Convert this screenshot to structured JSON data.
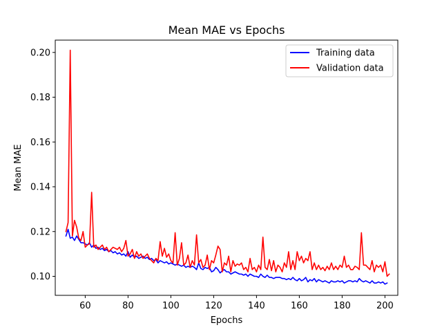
{
  "chart_data": {
    "type": "line",
    "title": "Mean MAE vs Epochs",
    "xlabel": "Epochs",
    "ylabel": "Mean MAE",
    "xlim": [
      46,
      206
    ],
    "ylim": [
      0.0915,
      0.2055
    ],
    "xticks": [
      60,
      80,
      100,
      120,
      140,
      160,
      180,
      200
    ],
    "yticks": [
      0.1,
      0.12,
      0.14,
      0.16,
      0.18,
      0.2
    ],
    "ytick_format": 2,
    "legend_position": "top-right",
    "series": [
      {
        "name": "Training data",
        "color": "#0000ff",
        "x_start": 51,
        "values": [
          0.118,
          0.121,
          0.117,
          0.1175,
          0.116,
          0.118,
          0.1165,
          0.115,
          0.115,
          0.1145,
          0.114,
          0.115,
          0.113,
          0.114,
          0.1125,
          0.113,
          0.112,
          0.1125,
          0.1115,
          0.112,
          0.111,
          0.1115,
          0.1105,
          0.111,
          0.11,
          0.1105,
          0.1095,
          0.11,
          0.109,
          0.111,
          0.1085,
          0.1095,
          0.1085,
          0.109,
          0.108,
          0.1085,
          0.109,
          0.108,
          0.1085,
          0.1075,
          0.108,
          0.107,
          0.1075,
          0.106,
          0.107,
          0.1065,
          0.106,
          0.1065,
          0.1055,
          0.106,
          0.1055,
          0.105,
          0.1055,
          0.105,
          0.1045,
          0.105,
          0.104,
          0.1045,
          0.104,
          0.1045,
          0.104,
          0.103,
          0.106,
          0.1035,
          0.103,
          0.104,
          0.1035,
          0.104,
          0.102,
          0.1025,
          0.104,
          0.103,
          0.1015,
          0.1025,
          0.103,
          0.102,
          0.102,
          0.101,
          0.1015,
          0.102,
          0.1015,
          0.101,
          0.101,
          0.1005,
          0.101,
          0.1,
          0.101,
          0.1005,
          0.1,
          0.1,
          0.0995,
          0.101,
          0.1,
          0.0995,
          0.1005,
          0.0995,
          0.0995,
          0.099,
          0.0995,
          0.0995,
          0.0995,
          0.099,
          0.099,
          0.0985,
          0.099,
          0.0985,
          0.0995,
          0.0985,
          0.098,
          0.099,
          0.098,
          0.0985,
          0.0995,
          0.0975,
          0.0985,
          0.098,
          0.099,
          0.0975,
          0.0985,
          0.098,
          0.0975,
          0.098,
          0.0975,
          0.097,
          0.098,
          0.0975,
          0.0975,
          0.098,
          0.0975,
          0.098,
          0.097,
          0.0975,
          0.098,
          0.098,
          0.0975,
          0.098,
          0.0975,
          0.099,
          0.098,
          0.0975,
          0.098,
          0.0975,
          0.097,
          0.098,
          0.097,
          0.097,
          0.0975,
          0.097,
          0.0975,
          0.0965,
          0.097
        ]
      },
      {
        "name": "Validation data",
        "color": "#ff0000",
        "x_start": 51,
        "values": [
          0.12,
          0.124,
          0.201,
          0.118,
          0.125,
          0.122,
          0.117,
          0.116,
          0.12,
          0.113,
          0.114,
          0.1145,
          0.1375,
          0.113,
          0.114,
          0.112,
          0.113,
          0.114,
          0.112,
          0.113,
          0.111,
          0.112,
          0.113,
          0.1125,
          0.112,
          0.113,
          0.111,
          0.1125,
          0.116,
          0.109,
          0.11,
          0.112,
          0.108,
          0.111,
          0.109,
          0.11,
          0.108,
          0.109,
          0.11,
          0.108,
          0.107,
          0.106,
          0.108,
          0.107,
          0.1155,
          0.109,
          0.1125,
          0.1085,
          0.11,
          0.107,
          0.106,
          0.1195,
          0.105,
          0.108,
          0.115,
          0.105,
          0.106,
          0.1095,
          0.104,
          0.107,
          0.105,
          0.1185,
          0.106,
          0.1075,
          0.104,
          0.105,
          0.1095,
          0.103,
          0.107,
          0.106,
          0.1095,
          0.1135,
          0.112,
          0.102,
          0.106,
          0.105,
          0.109,
          0.102,
          0.107,
          0.1045,
          0.1055,
          0.105,
          0.106,
          0.103,
          0.104,
          0.102,
          0.108,
          0.103,
          0.104,
          0.102,
          0.105,
          0.103,
          0.1175,
          0.104,
          0.103,
          0.1075,
          0.1025,
          0.107,
          0.102,
          0.105,
          0.104,
          0.102,
          0.106,
          0.104,
          0.111,
          0.103,
          0.107,
          0.103,
          0.111,
          0.107,
          0.109,
          0.106,
          0.108,
          0.107,
          0.111,
          0.103,
          0.106,
          0.103,
          0.105,
          0.103,
          0.104,
          0.1025,
          0.1045,
          0.103,
          0.106,
          0.103,
          0.1045,
          0.103,
          0.105,
          0.104,
          0.109,
          0.104,
          0.105,
          0.103,
          0.103,
          0.1045,
          0.104,
          0.103,
          0.1195,
          0.105,
          0.105,
          0.104,
          0.103,
          0.107,
          0.102,
          0.105,
          0.104,
          0.105,
          0.102,
          0.1065,
          0.1,
          0.101
        ]
      }
    ]
  }
}
